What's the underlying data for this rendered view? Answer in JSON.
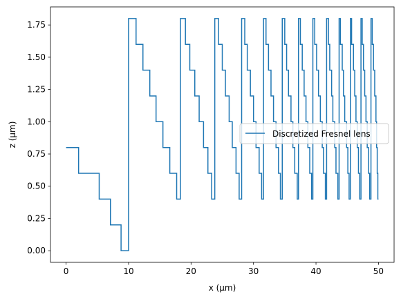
{
  "chart_data": {
    "type": "line",
    "xlabel": "x (μm)",
    "ylabel": "z (μm)",
    "xlim": [
      -2.5,
      52.5
    ],
    "ylim": [
      -0.09,
      1.89
    ],
    "x_ticks": [
      {
        "value": 0,
        "label": "0"
      },
      {
        "value": 10,
        "label": "10"
      },
      {
        "value": 20,
        "label": "20"
      },
      {
        "value": 30,
        "label": "30"
      },
      {
        "value": 40,
        "label": "40"
      },
      {
        "value": 50,
        "label": "50"
      }
    ],
    "y_ticks": [
      {
        "value": 0.0,
        "label": "0.00"
      },
      {
        "value": 0.25,
        "label": "0.25"
      },
      {
        "value": 0.5,
        "label": "0.50"
      },
      {
        "value": 0.75,
        "label": "0.75"
      },
      {
        "value": 1.0,
        "label": "1.00"
      },
      {
        "value": 1.25,
        "label": "1.25"
      },
      {
        "value": 1.5,
        "label": "1.50"
      },
      {
        "value": 1.75,
        "label": "1.75"
      }
    ],
    "grid": false,
    "legend_position": "center-right",
    "series": [
      {
        "name": "Discretized Fresnel lens",
        "color": "#1f77b4",
        "step_levels": [
          0.8,
          0.6,
          0.4,
          0.2,
          0.0
        ],
        "first_zone_breaks": [
          0,
          2.0,
          5.3,
          7.1,
          8.8,
          10.0
        ],
        "zone_breaks": [
          [
            10.0,
            11.2,
            12.3,
            13.4,
            14.4,
            15.5,
            16.6,
            17.7,
            18.3
          ],
          [
            18.3,
            19.1,
            19.8,
            20.6,
            21.3,
            22.0,
            22.7,
            23.3,
            23.8
          ],
          [
            23.8,
            24.4,
            25.0,
            25.5,
            26.1,
            26.6,
            27.2,
            27.7,
            28.1
          ],
          [
            28.1,
            28.6,
            29.0,
            29.5,
            30.0,
            30.4,
            30.9,
            31.3,
            31.6
          ],
          [
            31.6,
            32.0,
            32.4,
            32.8,
            33.2,
            33.6,
            34.0,
            34.3,
            34.6
          ],
          [
            34.6,
            35.0,
            35.3,
            35.6,
            36.0,
            36.3,
            36.6,
            37.0,
            37.2
          ],
          [
            37.2,
            37.5,
            37.8,
            38.1,
            38.4,
            38.7,
            39.0,
            39.3,
            39.5
          ],
          [
            39.5,
            39.8,
            40.1,
            40.4,
            40.7,
            41.0,
            41.2,
            41.5,
            41.7
          ],
          [
            41.7,
            42.0,
            42.2,
            42.5,
            42.7,
            43.0,
            43.2,
            43.5,
            43.7
          ],
          [
            43.7,
            43.9,
            44.2,
            44.4,
            44.6,
            44.9,
            45.1,
            45.3,
            45.5
          ],
          [
            45.5,
            45.7,
            46.0,
            46.2,
            46.4,
            46.6,
            46.8,
            47.0,
            47.2
          ],
          [
            47.2,
            47.4,
            47.6,
            47.8,
            48.0,
            48.2,
            48.4,
            48.6,
            48.8
          ],
          [
            48.8,
            49.0,
            49.2,
            49.4,
            49.6,
            49.7,
            49.8,
            49.9,
            50.0
          ]
        ],
        "zone_levels": [
          1.8,
          1.6,
          1.4,
          1.2,
          1.0,
          0.8,
          0.6,
          0.4,
          0.2,
          0.0
        ]
      }
    ]
  }
}
